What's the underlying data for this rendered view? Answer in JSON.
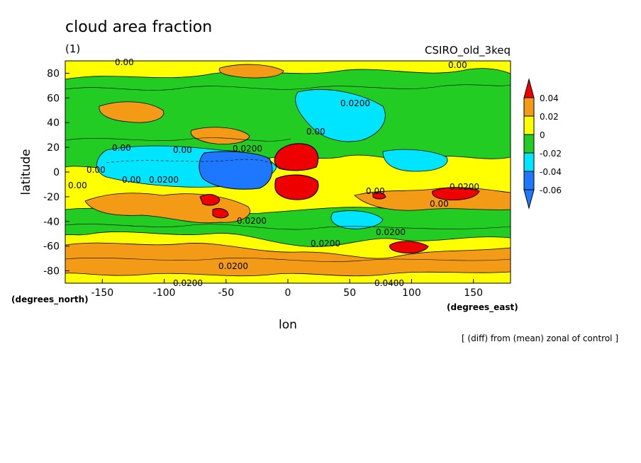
{
  "title": "cloud area fraction",
  "subtitle": "(1)",
  "model_label": "CSIRO_old_3keq",
  "footer": "[ (diff) from (mean) zonal of control ]",
  "chart_data": {
    "type": "heatmap",
    "title": "cloud area fraction",
    "xlabel": "lon",
    "ylabel": "latitude",
    "x_units": "(degrees_east)",
    "y_units": "(degrees_north)",
    "xlim": [
      -180,
      180
    ],
    "ylim": [
      -90,
      90
    ],
    "x_ticks": [
      "-150",
      "-100",
      "-50",
      "0",
      "50",
      "100",
      "150"
    ],
    "y_ticks": [
      "80",
      "60",
      "40",
      "20",
      "0",
      "-20",
      "-40",
      "-60",
      "-80"
    ],
    "colorbar": {
      "labels": [
        "0.04",
        "0.02",
        "0",
        "-0.02",
        "-0.04",
        "-0.06"
      ],
      "bands": [
        {
          "from": 0.04,
          "to": null,
          "color": "#ee0000"
        },
        {
          "from": 0.02,
          "to": 0.04,
          "color": "#f39a17"
        },
        {
          "from": 0.0,
          "to": 0.02,
          "color": "#ffff00"
        },
        {
          "from": -0.02,
          "to": 0.0,
          "color": "#22cc22"
        },
        {
          "from": -0.04,
          "to": -0.02,
          "color": "#00e5ff"
        },
        {
          "from": -0.06,
          "to": -0.04,
          "color": "#1e78ff"
        },
        {
          "from": null,
          "to": -0.06,
          "color": "#1e78ff"
        }
      ]
    },
    "contour_labels": [
      "0.00",
      "0.00",
      "0.00",
      "0.00",
      "0.00",
      "0.00",
      "0.00",
      "0.00",
      "0.00",
      "0.00",
      "0.0200",
      "0.0200",
      "0.0200",
      "0.0200",
      "0.0200",
      "0.0200",
      "0.0200",
      "0.0200",
      "0.0400",
      "0.0200"
    ]
  }
}
